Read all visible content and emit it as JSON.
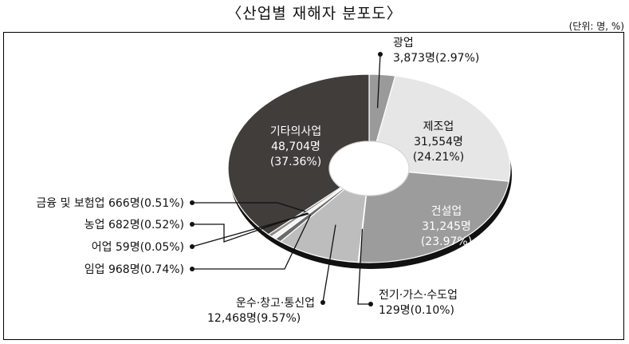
{
  "title": "〈산업별 재해자 분포도〉",
  "unit": "(단위: 명, %)",
  "chart_data": {
    "type": "pie",
    "style": "donut-3d",
    "title": "〈산업별 재해자 분포도〉",
    "unit": "(단위: 명, %)",
    "slices": [
      {
        "name": "광업",
        "count": 3873,
        "count_label": "3,873명",
        "percent": 2.97,
        "percent_label": "(2.97%)",
        "color": "#9a9a9a"
      },
      {
        "name": "제조업",
        "count": 31554,
        "count_label": "31,554명",
        "percent": 24.21,
        "percent_label": "(24.21%)",
        "color": "#e6e6e6"
      },
      {
        "name": "건설업",
        "count": 31245,
        "count_label": "31,245명",
        "percent": 23.97,
        "percent_label": "(23.97%)",
        "color": "#9c9c9c"
      },
      {
        "name": "전기·가스·수도업",
        "count": 129,
        "count_label": "129명",
        "percent": 0.1,
        "percent_label": "(0.10%)",
        "color": "#d8d8d8"
      },
      {
        "name": "운수·창고·통신업",
        "count": 12468,
        "count_label": "12,468명",
        "percent": 9.57,
        "percent_label": "(9.57%)",
        "color": "#bdbdbd"
      },
      {
        "name": "임업",
        "count": 968,
        "count_label": "968명",
        "percent": 0.74,
        "percent_label": "(0.74%)",
        "color": "#6a6a6a"
      },
      {
        "name": "어업",
        "count": 59,
        "count_label": "59명",
        "percent": 0.05,
        "percent_label": "(0.05%)",
        "color": "#ffffff"
      },
      {
        "name": "농업",
        "count": 682,
        "count_label": "682명",
        "percent": 0.52,
        "percent_label": "(0.52%)",
        "color": "#f2f2f2"
      },
      {
        "name": "금융 및 보험업",
        "count": 666,
        "count_label": "666명",
        "percent": 0.51,
        "percent_label": "(0.51%)",
        "color": "#8c8c8c"
      },
      {
        "name": "기타의사업",
        "count": 48704,
        "count_label": "48,704명",
        "percent": 37.36,
        "percent_label": "(37.36%)",
        "color": "#403d3b"
      }
    ]
  }
}
